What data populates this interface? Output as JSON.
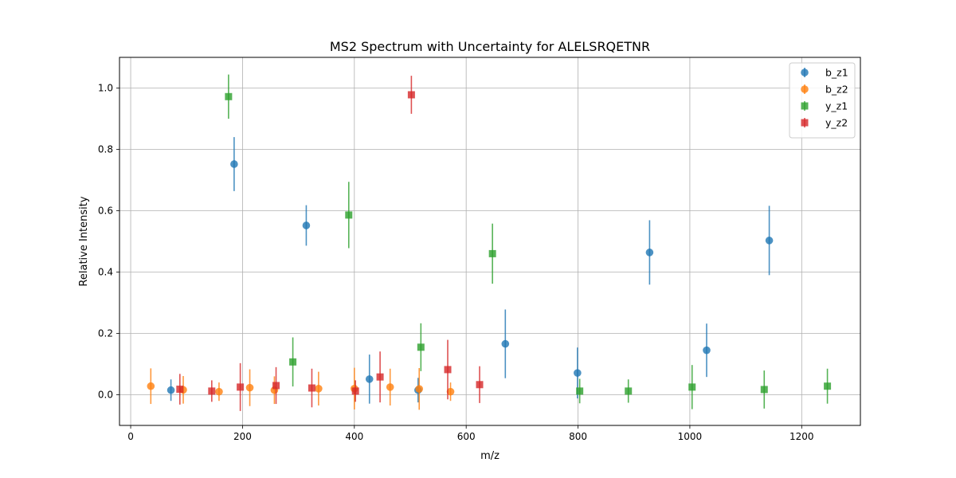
{
  "chart_data": {
    "type": "scatter",
    "title": "MS2 Spectrum with Uncertainty for ALELSRQETNR",
    "xlabel": "m/z",
    "ylabel": "Relative Intensity",
    "xlim": [
      -20,
      1305
    ],
    "ylim": [
      -0.1,
      1.1
    ],
    "xticks": [
      0,
      200,
      400,
      600,
      800,
      1000,
      1200
    ],
    "yticks": [
      0.0,
      0.2,
      0.4,
      0.6,
      0.8,
      1.0
    ],
    "grid": true,
    "legend_position": "top-right",
    "series": [
      {
        "name": "b_z1",
        "color": "#1f77b4",
        "marker": "circle",
        "points": [
          {
            "x": 72,
            "y": 0.015,
            "err": 0.035
          },
          {
            "x": 185,
            "y": 0.752,
            "err": 0.088
          },
          {
            "x": 314,
            "y": 0.552,
            "err": 0.066
          },
          {
            "x": 427,
            "y": 0.051,
            "err": 0.08
          },
          {
            "x": 514,
            "y": 0.015,
            "err": 0.04
          },
          {
            "x": 670,
            "y": 0.166,
            "err": 0.112
          },
          {
            "x": 799,
            "y": 0.071,
            "err": 0.083
          },
          {
            "x": 928,
            "y": 0.464,
            "err": 0.105
          },
          {
            "x": 1030,
            "y": 0.145,
            "err": 0.087
          },
          {
            "x": 1142,
            "y": 0.503,
            "err": 0.113
          }
        ]
      },
      {
        "name": "b_z2",
        "color": "#ff7f0e",
        "marker": "circle",
        "points": [
          {
            "x": 36,
            "y": 0.028,
            "err": 0.058
          },
          {
            "x": 94,
            "y": 0.016,
            "err": 0.045
          },
          {
            "x": 158,
            "y": 0.01,
            "err": 0.03
          },
          {
            "x": 213,
            "y": 0.023,
            "err": 0.06
          },
          {
            "x": 257,
            "y": 0.015,
            "err": 0.045
          },
          {
            "x": 336,
            "y": 0.02,
            "err": 0.055
          },
          {
            "x": 400,
            "y": 0.02,
            "err": 0.068
          },
          {
            "x": 464,
            "y": 0.025,
            "err": 0.06
          },
          {
            "x": 516,
            "y": 0.019,
            "err": 0.068
          },
          {
            "x": 572,
            "y": 0.01,
            "err": 0.03
          }
        ]
      },
      {
        "name": "y_z1",
        "color": "#2ca02c",
        "marker": "square",
        "points": [
          {
            "x": 175,
            "y": 0.972,
            "err": 0.072
          },
          {
            "x": 290,
            "y": 0.107,
            "err": 0.08
          },
          {
            "x": 390,
            "y": 0.586,
            "err": 0.108
          },
          {
            "x": 519,
            "y": 0.155,
            "err": 0.078
          },
          {
            "x": 647,
            "y": 0.46,
            "err": 0.098
          },
          {
            "x": 803,
            "y": 0.012,
            "err": 0.04
          },
          {
            "x": 890,
            "y": 0.012,
            "err": 0.038
          },
          {
            "x": 1004,
            "y": 0.025,
            "err": 0.072
          },
          {
            "x": 1133,
            "y": 0.017,
            "err": 0.062
          },
          {
            "x": 1246,
            "y": 0.028,
            "err": 0.057
          }
        ]
      },
      {
        "name": "y_z2",
        "color": "#d62728",
        "marker": "square",
        "points": [
          {
            "x": 88,
            "y": 0.018,
            "err": 0.05
          },
          {
            "x": 145,
            "y": 0.012,
            "err": 0.035
          },
          {
            "x": 196,
            "y": 0.025,
            "err": 0.078
          },
          {
            "x": 260,
            "y": 0.03,
            "err": 0.06
          },
          {
            "x": 324,
            "y": 0.022,
            "err": 0.063
          },
          {
            "x": 402,
            "y": 0.012,
            "err": 0.035
          },
          {
            "x": 446,
            "y": 0.058,
            "err": 0.083
          },
          {
            "x": 502,
            "y": 0.978,
            "err": 0.062
          },
          {
            "x": 567,
            "y": 0.082,
            "err": 0.097
          },
          {
            "x": 624,
            "y": 0.033,
            "err": 0.06
          }
        ]
      }
    ]
  }
}
